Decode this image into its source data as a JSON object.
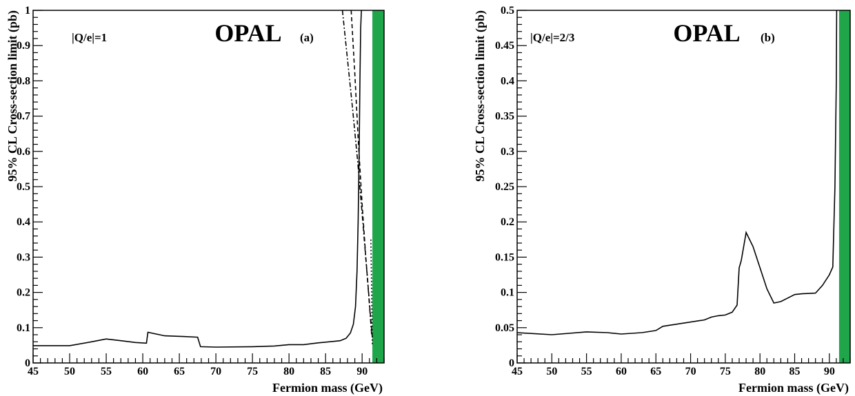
{
  "chart_data": [
    {
      "type": "line",
      "panel": "(a)",
      "title": "OPAL",
      "charge_label": "|Q/e|=1",
      "xlabel": "Fermion mass (GeV)",
      "ylabel": "95% CL Cross-section limit (pb)",
      "xlim": [
        45,
        93
      ],
      "ylim": [
        0,
        1
      ],
      "xticks": [
        45,
        50,
        55,
        60,
        65,
        70,
        75,
        80,
        85,
        90
      ],
      "yticks": [
        0,
        0.1,
        0.2,
        0.3,
        0.4,
        0.5,
        0.6,
        0.7,
        0.8,
        0.9,
        1
      ],
      "ytick_labels": [
        "0",
        "0.1",
        "0.2",
        "0.3",
        "0.4",
        "0.5",
        "0.6",
        "0.7",
        "0.8",
        "0.9",
        "1"
      ],
      "excluded_band": {
        "x_from": 91.4,
        "x_to": 93,
        "color": "#1fa64a"
      },
      "series": [
        {
          "style": "solid",
          "x": [
            45,
            50,
            53,
            55,
            57,
            59,
            60.5,
            60.7,
            63,
            65.5,
            67.5,
            67.9,
            70,
            75,
            78,
            79,
            80,
            82,
            84,
            86,
            87,
            87.8,
            88.4,
            88.8,
            89.1,
            89.3,
            89.45,
            89.6,
            89.7,
            89.8,
            89.9,
            90.0
          ],
          "y": [
            0.049,
            0.049,
            0.06,
            0.068,
            0.063,
            0.058,
            0.056,
            0.087,
            0.077,
            0.075,
            0.073,
            0.046,
            0.045,
            0.046,
            0.048,
            0.05,
            0.052,
            0.052,
            0.057,
            0.061,
            0.063,
            0.07,
            0.085,
            0.11,
            0.16,
            0.26,
            0.4,
            0.6,
            0.8,
            0.95,
            1.0,
            1.0
          ]
        },
        {
          "style": "dashed",
          "x": [
            88.5,
            89,
            89.5,
            90,
            90.5,
            91,
            91.4
          ],
          "y": [
            1.0,
            0.82,
            0.62,
            0.45,
            0.3,
            0.17,
            0.07
          ]
        },
        {
          "style": "dashdot",
          "x": [
            87.3,
            88,
            88.7,
            89.4,
            90.1,
            90.8,
            91.3
          ],
          "y": [
            1.0,
            0.86,
            0.72,
            0.57,
            0.4,
            0.22,
            0.08
          ]
        },
        {
          "style": "dotted",
          "x": [
            91.2,
            91.3,
            91.4
          ],
          "y": [
            0.35,
            0.2,
            0.05
          ]
        }
      ]
    },
    {
      "type": "line",
      "panel": "(b)",
      "title": "OPAL",
      "charge_label": "|Q/e|=2/3",
      "xlabel": "Fermion mass (GeV)",
      "ylabel": "95% CL Cross-section limit (pb)",
      "xlim": [
        45,
        93
      ],
      "ylim": [
        0,
        0.5
      ],
      "xticks": [
        45,
        50,
        55,
        60,
        65,
        70,
        75,
        80,
        85,
        90
      ],
      "yticks": [
        0,
        0.05,
        0.1,
        0.15,
        0.2,
        0.25,
        0.3,
        0.35,
        0.4,
        0.45,
        0.5
      ],
      "ytick_labels": [
        "0",
        "0.05",
        "0.1",
        "0.15",
        "0.2",
        "0.25",
        "0.3",
        "0.35",
        "0.4",
        "0.45",
        "0.5"
      ],
      "excluded_band": {
        "x_from": 91.4,
        "x_to": 93,
        "color": "#1fa64a"
      },
      "series": [
        {
          "style": "solid",
          "x": [
            45,
            50,
            55,
            58,
            60,
            63,
            65,
            66,
            68,
            70,
            72,
            73,
            74,
            75,
            76,
            76.7,
            77,
            77.3,
            78,
            79,
            80,
            81,
            82,
            83,
            84,
            85,
            86,
            88,
            89,
            90,
            90.5,
            90.8,
            91.0,
            91.05
          ],
          "y": [
            0.043,
            0.04,
            0.044,
            0.043,
            0.041,
            0.043,
            0.046,
            0.052,
            0.055,
            0.058,
            0.061,
            0.065,
            0.067,
            0.068,
            0.072,
            0.082,
            0.135,
            0.145,
            0.185,
            0.165,
            0.135,
            0.105,
            0.085,
            0.087,
            0.092,
            0.097,
            0.098,
            0.099,
            0.11,
            0.125,
            0.136,
            0.25,
            0.4,
            0.5
          ]
        }
      ]
    }
  ]
}
